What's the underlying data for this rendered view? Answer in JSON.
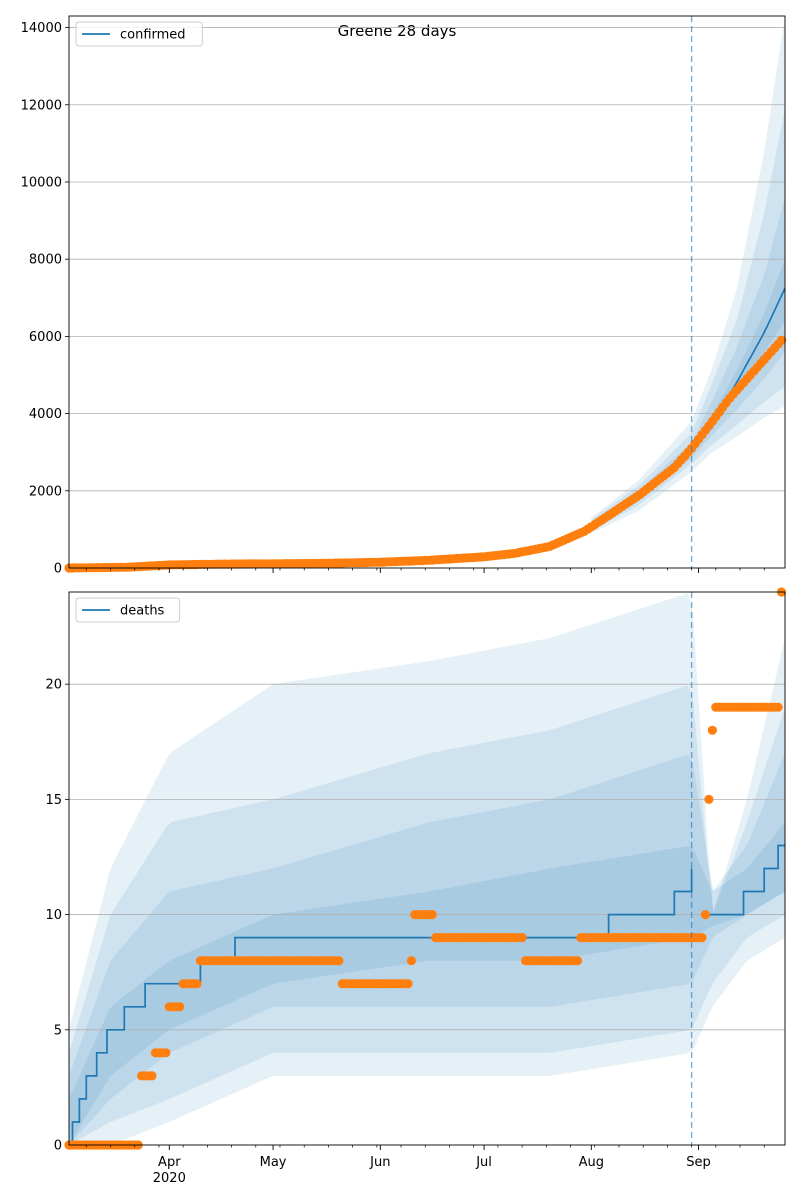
{
  "title": "Greene 28 days",
  "colors": {
    "line": "#1f77b4",
    "points": "#ff7f0e",
    "band": "#1f77b4",
    "grid": "#b0b0b0",
    "vline": "#1f77b4"
  },
  "x_ticks": [
    {
      "date": "2020-04-01",
      "label": "Apr",
      "sub": "2020"
    },
    {
      "date": "2020-05-01",
      "label": "May",
      "sub": ""
    },
    {
      "date": "2020-06-01",
      "label": "Jun",
      "sub": ""
    },
    {
      "date": "2020-07-01",
      "label": "Jul",
      "sub": ""
    },
    {
      "date": "2020-08-01",
      "label": "Aug",
      "sub": ""
    },
    {
      "date": "2020-09-01",
      "label": "Sep",
      "sub": ""
    }
  ],
  "forecast_start": "2020-08-30",
  "chart_data": [
    {
      "type": "line",
      "title": "Greene 28 days",
      "legend": "top-left",
      "legend_label": "confirmed",
      "grid": "y",
      "xlim": [
        "2020-03-03",
        "2020-09-26"
      ],
      "ylim": [
        0,
        14300
      ],
      "yticks": [
        0,
        2000,
        4000,
        6000,
        8000,
        10000,
        12000,
        14000
      ],
      "model_line": {
        "x": [
          "2020-03-03",
          "2020-04-01",
          "2020-05-01",
          "2020-06-01",
          "2020-07-01",
          "2020-07-15",
          "2020-08-01",
          "2020-08-15",
          "2020-08-25",
          "2020-08-30",
          "2020-09-05",
          "2020-09-12",
          "2020-09-20",
          "2020-09-26"
        ],
        "y": [
          0,
          80,
          110,
          150,
          290,
          450,
          1100,
          1900,
          2600,
          3050,
          3750,
          4800,
          6100,
          7250
        ]
      },
      "bands": [
        {
          "x": [
            "2020-08-01",
            "2020-08-15",
            "2020-08-30",
            "2020-09-05",
            "2020-09-12",
            "2020-09-20",
            "2020-09-26"
          ],
          "lower": [
            900,
            1500,
            2500,
            3000,
            3400,
            3900,
            4200
          ],
          "upper": [
            1300,
            2300,
            3800,
            5200,
            7200,
            10800,
            14300
          ]
        },
        {
          "x": [
            "2020-08-01",
            "2020-08-15",
            "2020-08-30",
            "2020-09-05",
            "2020-09-12",
            "2020-09-20",
            "2020-09-26"
          ],
          "lower": [
            950,
            1650,
            2700,
            3200,
            3700,
            4300,
            4700
          ],
          "upper": [
            1250,
            2150,
            3500,
            4800,
            6400,
            9200,
            11900
          ]
        },
        {
          "x": [
            "2020-08-01",
            "2020-08-15",
            "2020-08-30",
            "2020-09-05",
            "2020-09-12",
            "2020-09-20",
            "2020-09-26"
          ],
          "lower": [
            1000,
            1750,
            2850,
            3450,
            4100,
            4900,
            5600
          ],
          "upper": [
            1200,
            2050,
            3250,
            4350,
            5700,
            7600,
            9600
          ]
        },
        {
          "x": [
            "2020-08-01",
            "2020-08-15",
            "2020-08-30",
            "2020-09-05",
            "2020-09-12",
            "2020-09-20",
            "2020-09-26"
          ],
          "lower": [
            1050,
            1820,
            2950,
            3600,
            4500,
            5600,
            6400
          ],
          "upper": [
            1150,
            1960,
            3120,
            4000,
            5100,
            6600,
            8000
          ]
        }
      ],
      "observed": {
        "x": [
          "2020-03-03",
          "2020-03-20",
          "2020-04-01",
          "2020-04-15",
          "2020-05-01",
          "2020-05-15",
          "2020-06-01",
          "2020-06-15",
          "2020-07-01",
          "2020-07-10",
          "2020-07-20",
          "2020-07-30",
          "2020-08-05",
          "2020-08-15",
          "2020-08-25",
          "2020-08-30",
          "2020-09-05",
          "2020-09-10",
          "2020-09-15",
          "2020-09-20",
          "2020-09-25"
        ],
        "y": [
          0,
          20,
          80,
          100,
          110,
          120,
          150,
          200,
          290,
          380,
          560,
          950,
          1300,
          1900,
          2600,
          3100,
          3800,
          4400,
          4900,
          5400,
          5900
        ]
      }
    },
    {
      "type": "line",
      "title": "",
      "legend": "top-left",
      "legend_label": "deaths",
      "grid": "y",
      "xlim": [
        "2020-03-03",
        "2020-09-26"
      ],
      "ylim": [
        0,
        24
      ],
      "yticks": [
        0,
        5,
        10,
        15,
        20
      ],
      "model_line": {
        "x": [
          "2020-03-03",
          "2020-03-04",
          "2020-03-06",
          "2020-03-08",
          "2020-03-11",
          "2020-03-14",
          "2020-03-19",
          "2020-03-25",
          "2020-03-31",
          "2020-04-10",
          "2020-04-20",
          "2020-06-30",
          "2020-08-06",
          "2020-08-25",
          "2020-08-30",
          "2020-09-04",
          "2020-09-14",
          "2020-09-20",
          "2020-09-24",
          "2020-09-26"
        ],
        "y": [
          0,
          1,
          2,
          3,
          4,
          5,
          6,
          7,
          7,
          8,
          9,
          9,
          10,
          11,
          12,
          10,
          11,
          12,
          13,
          13
        ],
        "step": true,
        "break_after": "2020-08-30"
      },
      "bands": [
        {
          "x": [
            "2020-03-03",
            "2020-03-15",
            "2020-04-01",
            "2020-05-01",
            "2020-06-15",
            "2020-07-20",
            "2020-08-30",
            "2020-09-05",
            "2020-09-15",
            "2020-09-26"
          ],
          "lower": [
            0,
            0,
            1,
            3,
            3,
            3,
            4,
            6,
            8,
            9
          ],
          "upper": [
            5,
            12,
            17,
            20,
            21,
            22,
            24,
            10,
            15,
            22
          ]
        },
        {
          "x": [
            "2020-03-03",
            "2020-03-15",
            "2020-04-01",
            "2020-05-01",
            "2020-06-15",
            "2020-07-20",
            "2020-08-30",
            "2020-09-05",
            "2020-09-15",
            "2020-09-26"
          ],
          "lower": [
            0,
            1,
            2,
            4,
            4,
            4,
            5,
            7,
            9,
            10
          ],
          "upper": [
            4,
            10,
            14,
            15,
            17,
            18,
            20,
            10,
            14,
            19
          ]
        },
        {
          "x": [
            "2020-03-03",
            "2020-03-15",
            "2020-04-01",
            "2020-05-01",
            "2020-06-15",
            "2020-07-20",
            "2020-08-30",
            "2020-09-05",
            "2020-09-15",
            "2020-09-26"
          ],
          "lower": [
            0,
            2,
            4,
            6,
            6,
            6,
            7,
            9,
            10,
            11
          ],
          "upper": [
            3,
            8,
            11,
            12,
            14,
            15,
            17,
            11,
            13,
            17
          ]
        },
        {
          "x": [
            "2020-03-03",
            "2020-03-15",
            "2020-04-01",
            "2020-05-01",
            "2020-06-15",
            "2020-07-20",
            "2020-08-30",
            "2020-09-05",
            "2020-09-15",
            "2020-09-26"
          ],
          "lower": [
            0,
            3,
            5,
            7,
            8,
            8,
            9,
            9.5,
            10,
            11
          ],
          "upper": [
            2,
            6,
            8,
            10,
            11,
            12,
            13,
            11,
            12,
            14
          ]
        }
      ],
      "observed": {
        "x": [
          "2020-03-03",
          "2020-03-24",
          "2020-03-28",
          "2020-04-01",
          "2020-04-05",
          "2020-04-10",
          "2020-05-20",
          "2020-05-21",
          "2020-06-10",
          "2020-06-11",
          "2020-06-17",
          "2020-07-13",
          "2020-07-29",
          "2020-09-03",
          "2020-09-04",
          "2020-09-05",
          "2020-09-06",
          "2020-09-24",
          "2020-09-25"
        ],
        "y": [
          0,
          3,
          4,
          6,
          7,
          8,
          8,
          7,
          8,
          10,
          9,
          8,
          9,
          10,
          15,
          18,
          19,
          19,
          24
        ],
        "step": true
      }
    }
  ]
}
